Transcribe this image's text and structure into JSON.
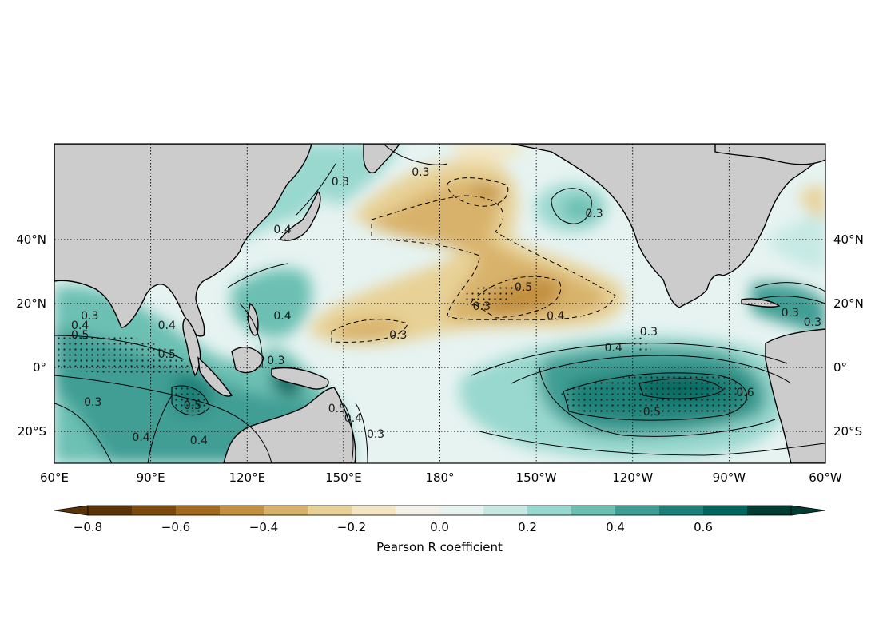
{
  "chart_data": {
    "type": "heatmap",
    "projection": "equirectangular",
    "extent": {
      "lon": [
        60,
        300
      ],
      "lat": [
        -30,
        70
      ]
    },
    "lon_ticks": [
      {
        "value": 60,
        "label": "60°E"
      },
      {
        "value": 90,
        "label": "90°E"
      },
      {
        "value": 120,
        "label": "120°E"
      },
      {
        "value": 150,
        "label": "150°E"
      },
      {
        "value": 180,
        "label": "180°"
      },
      {
        "value": 210,
        "label": "150°W"
      },
      {
        "value": 240,
        "label": "120°W"
      },
      {
        "value": 270,
        "label": "90°W"
      },
      {
        "value": 300,
        "label": "60°W"
      }
    ],
    "lat_ticks": [
      {
        "value": 40,
        "label": "40°N"
      },
      {
        "value": 20,
        "label": "20°N"
      },
      {
        "value": 0,
        "label": "0°"
      },
      {
        "value": -20,
        "label": "20°S"
      }
    ],
    "grid": true,
    "land_color": "#cccccc",
    "colormap": "BrBG",
    "levels": [
      -0.8,
      -0.7,
      -0.6,
      -0.5,
      -0.4,
      -0.3,
      -0.2,
      -0.1,
      0.0,
      0.1,
      0.2,
      0.3,
      0.4,
      0.5,
      0.6,
      0.7
    ],
    "colors": [
      "#5a3307",
      "#7c4a0c",
      "#a16a1e",
      "#c2903f",
      "#d8b26b",
      "#e8d196",
      "#f4e6c2",
      "#f5f1e8",
      "#e6f3f1",
      "#c6e9e4",
      "#99d8cf",
      "#6cc0b3",
      "#3f9e94",
      "#1c8178",
      "#01665e",
      "#003c30"
    ],
    "colorbar": {
      "ticks": [
        {
          "value": -0.8,
          "label": "−0.8"
        },
        {
          "value": -0.6,
          "label": "−0.6"
        },
        {
          "value": -0.4,
          "label": "−0.4"
        },
        {
          "value": -0.2,
          "label": "−0.2"
        },
        {
          "value": 0.0,
          "label": "0.0"
        },
        {
          "value": 0.2,
          "label": "0.2"
        },
        {
          "value": 0.4,
          "label": "0.4"
        },
        {
          "value": 0.6,
          "label": "0.6"
        }
      ],
      "label": "Pearson R coefficient",
      "placement": "bottom",
      "extend": "both"
    },
    "significance_stippling": true,
    "contour_labels": [
      {
        "lon": 95,
        "lat": 3,
        "text": "0.5"
      },
      {
        "lon": 95,
        "lat": 12,
        "text": "0.4"
      },
      {
        "lon": 71,
        "lat": 15,
        "text": "0.3"
      },
      {
        "lon": 68,
        "lat": 12,
        "text": "0.4"
      },
      {
        "lon": 68,
        "lat": 9,
        "text": "0.5"
      },
      {
        "lon": 72,
        "lat": -12,
        "text": "0.3"
      },
      {
        "lon": 87,
        "lat": -23,
        "text": "0.4"
      },
      {
        "lon": 103,
        "lat": -13,
        "text": "0.5"
      },
      {
        "lon": 105,
        "lat": -24,
        "text": "0.4"
      },
      {
        "lon": 131,
        "lat": 15,
        "text": "0.4"
      },
      {
        "lon": 129,
        "lat": 1,
        "text": "0.3"
      },
      {
        "lon": 148,
        "lat": -14,
        "text": "0.5"
      },
      {
        "lon": 153,
        "lat": -17,
        "text": "0.4"
      },
      {
        "lon": 160,
        "lat": -22,
        "text": "0.3"
      },
      {
        "lon": 131,
        "lat": 42,
        "text": "0.4"
      },
      {
        "lon": 149,
        "lat": 57,
        "text": "0.3"
      },
      {
        "lon": 174,
        "lat": 60,
        "text": "0.3"
      },
      {
        "lon": 228,
        "lat": 47,
        "text": "0.3"
      },
      {
        "lon": 167,
        "lat": 9,
        "text": "0.3"
      },
      {
        "lon": 193,
        "lat": 18,
        "text": "0.3"
      },
      {
        "lon": 206,
        "lat": 24,
        "text": "0.5"
      },
      {
        "lon": 216,
        "lat": 15,
        "text": "0.4"
      },
      {
        "lon": 234,
        "lat": 5,
        "text": "0.4"
      },
      {
        "lon": 245,
        "lat": 10,
        "text": "0.3"
      },
      {
        "lon": 246,
        "lat": -15,
        "text": "0.5"
      },
      {
        "lon": 275,
        "lat": -9,
        "text": "0.6"
      },
      {
        "lon": 289,
        "lat": 16,
        "text": "0.3"
      },
      {
        "lon": 296,
        "lat": 13,
        "text": "0.3"
      }
    ]
  }
}
